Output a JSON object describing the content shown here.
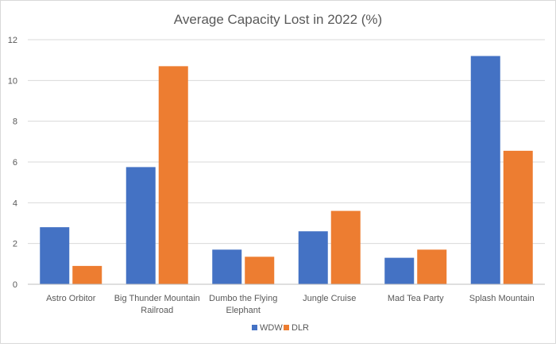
{
  "chart_data": {
    "type": "bar",
    "title": "Average Capacity Lost in 2022 (%)",
    "xlabel": "",
    "ylabel": "",
    "ylim": [
      0,
      12
    ],
    "yticks": [
      0,
      2,
      4,
      6,
      8,
      10,
      12
    ],
    "grid": true,
    "legend_position": "bottom",
    "categories": [
      [
        "Astro Orbitor"
      ],
      [
        "Big Thunder Mountain",
        "Railroad"
      ],
      [
        "Dumbo the Flying",
        "Elephant"
      ],
      [
        "Jungle Cruise"
      ],
      [
        "Mad Tea Party"
      ],
      [
        "Splash Mountain"
      ]
    ],
    "series": [
      {
        "name": "WDW",
        "color": "#4472c4",
        "values": [
          2.8,
          5.75,
          1.7,
          2.6,
          1.3,
          11.2
        ]
      },
      {
        "name": "DLR",
        "color": "#ed7d31",
        "values": [
          0.9,
          10.7,
          1.35,
          3.6,
          1.7,
          6.55
        ]
      }
    ]
  }
}
